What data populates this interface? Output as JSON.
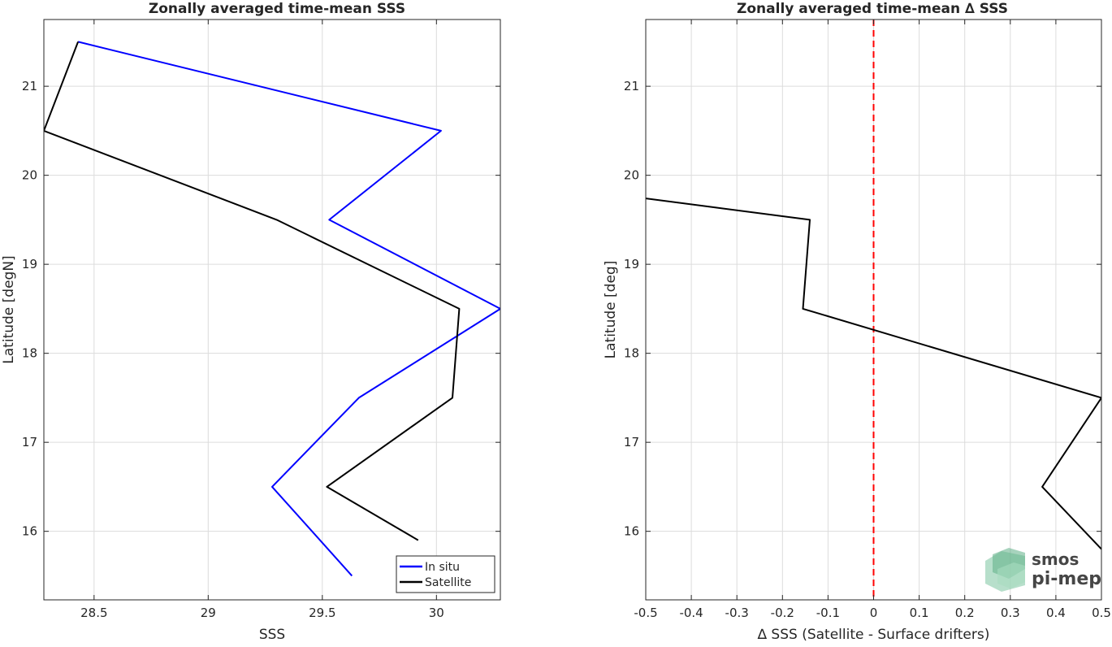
{
  "chart_data": [
    {
      "type": "line",
      "title": "Zonally averaged time-mean SSS",
      "xlabel": "SSS",
      "ylabel": "Latitude [degN]",
      "xlim": [
        28.28,
        30.28
      ],
      "ylim": [
        15.23,
        21.75
      ],
      "xticks": [
        28.5,
        29,
        29.5,
        30
      ],
      "xtick_labels": [
        "28.5",
        "29",
        "29.5",
        "30"
      ],
      "yticks": [
        16,
        17,
        18,
        19,
        20,
        21
      ],
      "ytick_labels": [
        "16",
        "17",
        "18",
        "19",
        "20",
        "21"
      ],
      "grid": true,
      "legend": "bottom-right",
      "series": [
        {
          "name": "In situ",
          "color": "#0000ff",
          "x": [
            28.43,
            30.02,
            29.53,
            30.28,
            29.66,
            29.28,
            29.63
          ],
          "y": [
            21.5,
            20.5,
            19.5,
            18.5,
            17.5,
            16.5,
            15.5
          ]
        },
        {
          "name": "Satellite",
          "color": "#000000",
          "x": [
            28.43,
            28.28,
            29.3,
            30.1,
            30.07,
            29.52,
            29.92
          ],
          "y": [
            21.5,
            20.5,
            19.5,
            18.5,
            17.5,
            16.5,
            15.9
          ]
        }
      ]
    },
    {
      "type": "line",
      "title": "Zonally averaged time-mean ∆ SSS",
      "xlabel": "∆ SSS (Satellite - Surface drifters)",
      "ylabel": "Latitude [deg]",
      "xlim": [
        -0.5,
        0.5
      ],
      "ylim": [
        15.23,
        21.75
      ],
      "xticks": [
        -0.5,
        -0.4,
        -0.3,
        -0.2,
        -0.1,
        0,
        0.1,
        0.2,
        0.3,
        0.4,
        0.5
      ],
      "xtick_labels": [
        "-0.5",
        "-0.4",
        "-0.3",
        "-0.2",
        "-0.1",
        "0",
        "0.1",
        "0.2",
        "0.3",
        "0.4",
        "0.5"
      ],
      "yticks": [
        16,
        17,
        18,
        19,
        20,
        21
      ],
      "ytick_labels": [
        "16",
        "17",
        "18",
        "19",
        "20",
        "21"
      ],
      "grid": true,
      "reference_line": {
        "x": 0,
        "color": "#ff0000",
        "style": "dashed"
      },
      "series": [
        {
          "color": "#000000",
          "x": [
            -0.5,
            -0.14,
            -0.155,
            0.5,
            0.37,
            0.5
          ],
          "y": [
            19.74,
            19.5,
            18.5,
            17.5,
            16.5,
            15.8
          ]
        }
      ]
    }
  ],
  "watermark": {
    "line1": "smos",
    "line2": "pi-mep"
  }
}
